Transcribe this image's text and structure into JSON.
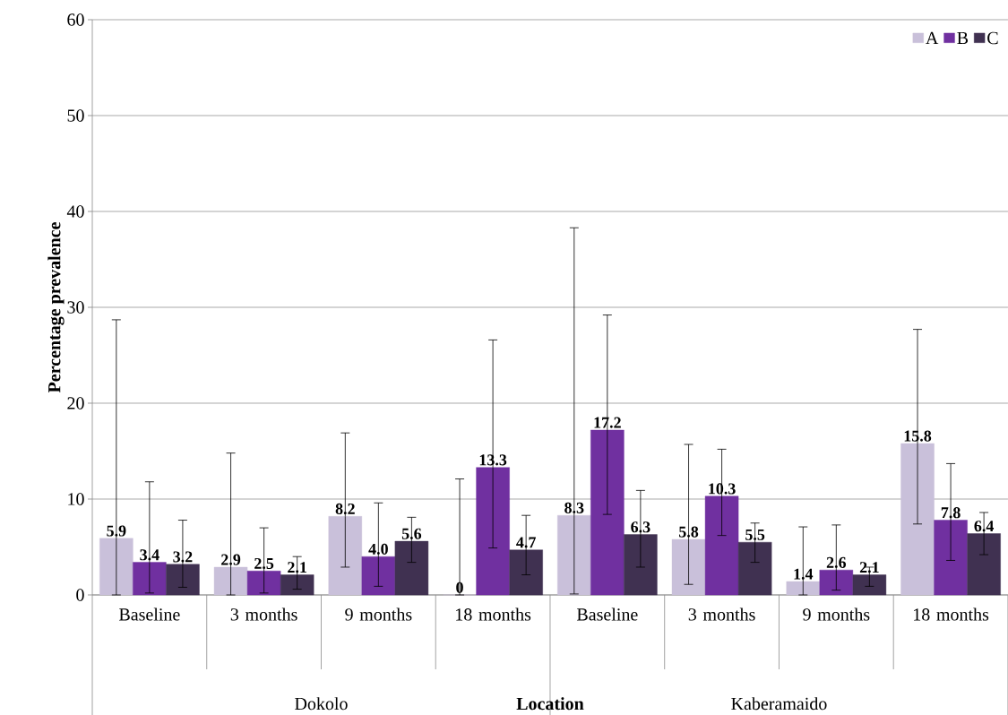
{
  "chart_data": {
    "type": "bar",
    "ylabel": "Percentage prevalence",
    "xlabel": "Location",
    "categories": [
      "Baseline",
      "3 months",
      "9 months",
      "18 months",
      "Baseline",
      "3 months",
      "9 months",
      "18 months"
    ],
    "series": [
      {
        "name": "A",
        "color": "#c9c0da",
        "values": [
          5.9,
          2.9,
          8.2,
          0,
          8.3,
          5.8,
          1.4,
          15.8
        ],
        "value_labels": [
          "5.9",
          "2.9",
          "8.2",
          "0",
          "8.3",
          "5.8",
          "1.4",
          "15.8"
        ],
        "errors": [
          [
            0,
            28.7
          ],
          [
            0,
            14.8
          ],
          [
            2.9,
            16.9
          ],
          [
            0,
            12.1
          ],
          [
            0.1,
            38.3
          ],
          [
            1.1,
            15.7
          ],
          [
            0,
            7.1
          ],
          [
            7.4,
            27.7
          ]
        ]
      },
      {
        "name": "B",
        "color": "#7030a0",
        "values": [
          3.4,
          2.5,
          4.0,
          13.3,
          17.2,
          10.3,
          2.6,
          7.8
        ],
        "value_labels": [
          "3.4",
          "2.5",
          "4.0",
          "13.3",
          "17.2",
          "10.3",
          "2.6",
          "7.8"
        ],
        "errors": [
          [
            0.2,
            11.8
          ],
          [
            0.2,
            7.0
          ],
          [
            0.9,
            9.6
          ],
          [
            4.9,
            26.6
          ],
          [
            8.4,
            29.2
          ],
          [
            6.2,
            15.2
          ],
          [
            0.5,
            7.3
          ],
          [
            3.6,
            13.7
          ]
        ]
      },
      {
        "name": "C",
        "color": "#403151",
        "values": [
          3.2,
          2.1,
          5.6,
          4.7,
          6.3,
          5.5,
          2.1,
          6.4
        ],
        "value_labels": [
          "3.2",
          "2.1",
          "5.6",
          "4.7",
          "6.3",
          "5.5",
          "2.1",
          "6.4"
        ],
        "errors": [
          [
            0.8,
            7.8
          ],
          [
            0.6,
            4.0
          ],
          [
            3.4,
            8.1
          ],
          [
            2.1,
            8.3
          ],
          [
            2.9,
            10.9
          ],
          [
            3.4,
            7.5
          ],
          [
            0.9,
            2.9
          ],
          [
            4.2,
            8.6
          ]
        ]
      }
    ],
    "annotations": [
      "Dokolo",
      "Kaberamaido"
    ],
    "ylim": [
      0,
      60
    ],
    "yticks": [
      0,
      10,
      20,
      30,
      40,
      50,
      60
    ],
    "grid": "y",
    "legend": "top right"
  }
}
